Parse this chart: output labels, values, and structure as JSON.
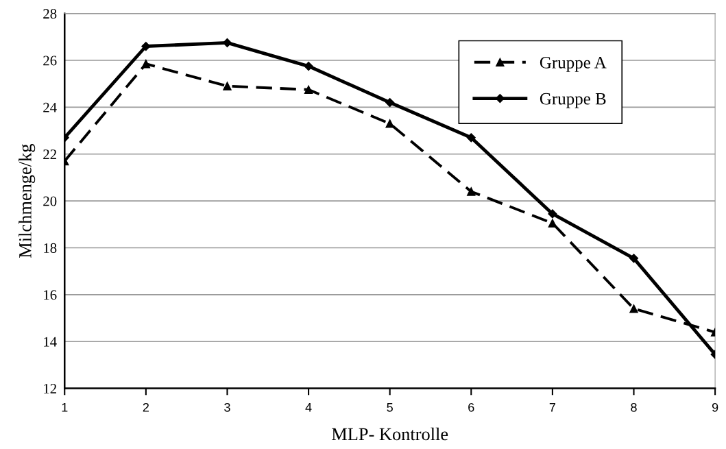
{
  "chart_data": {
    "type": "line",
    "xlabel": "MLP- Kontrolle",
    "ylabel": "Milchmenge/kg",
    "x": [
      1,
      2,
      3,
      4,
      5,
      6,
      7,
      8,
      9
    ],
    "xlim": [
      1,
      9
    ],
    "xticks": [
      1,
      2,
      3,
      4,
      5,
      6,
      7,
      8,
      9
    ],
    "ylim": [
      12,
      28
    ],
    "yticks": [
      12,
      14,
      16,
      18,
      20,
      22,
      24,
      26,
      28
    ],
    "grid": "y",
    "legend": "top right",
    "series": [
      {
        "name": "Gruppe A",
        "color": "#000000",
        "marker": "triangle",
        "line_style": "dashed",
        "values": [
          21.7,
          25.85,
          24.9,
          24.75,
          23.3,
          20.4,
          19.05,
          15.4,
          14.4
        ]
      },
      {
        "name": "Gruppe B",
        "color": "#000000",
        "marker": "diamond",
        "line_style": "solid",
        "values": [
          22.7,
          26.6,
          26.75,
          25.75,
          24.2,
          22.7,
          19.45,
          17.55,
          13.45
        ]
      }
    ]
  }
}
